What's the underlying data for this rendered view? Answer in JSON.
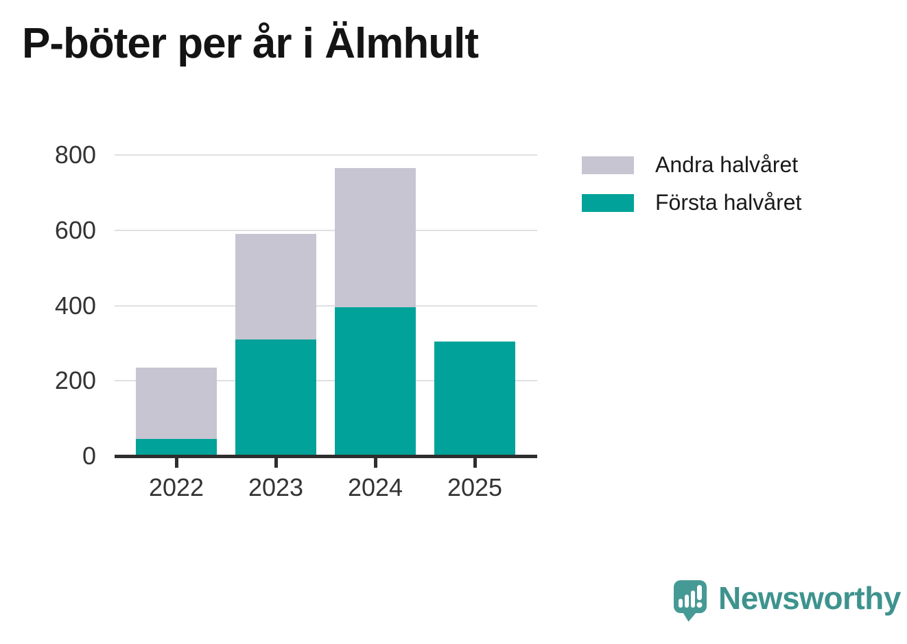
{
  "title": "P-böter per år i Älmhult",
  "chart_data": {
    "type": "bar",
    "stacked": true,
    "categories": [
      "2022",
      "2023",
      "2024",
      "2025"
    ],
    "series": [
      {
        "name": "Första halvåret",
        "color": "#00A29A",
        "values": [
          45,
          310,
          395,
          305
        ]
      },
      {
        "name": "Andra halvåret",
        "color": "#C7C5D1",
        "values": [
          190,
          280,
          370,
          0
        ]
      }
    ],
    "title": "P-böter per år i Älmhult",
    "xlabel": "",
    "ylabel": "",
    "ylim": [
      0,
      800
    ],
    "yticks": [
      0,
      200,
      400,
      600,
      800
    ],
    "grid": true,
    "legend_position": "top-right"
  },
  "legend": {
    "items": [
      {
        "label": "Andra halvåret",
        "color": "#C7C5D1"
      },
      {
        "label": "Första halvåret",
        "color": "#00A29A"
      }
    ]
  },
  "colors": {
    "first_half": "#00A29A",
    "second_half": "#C7C5D1",
    "gridline": "#E0DFE3",
    "axis": "#2E2E2E",
    "axis_text": "#333333",
    "logo": "#3E938E"
  },
  "branding": {
    "logo_text": "Newsworthy",
    "logo_icon": "newsworthy-speech-bubble-barchart-icon"
  }
}
